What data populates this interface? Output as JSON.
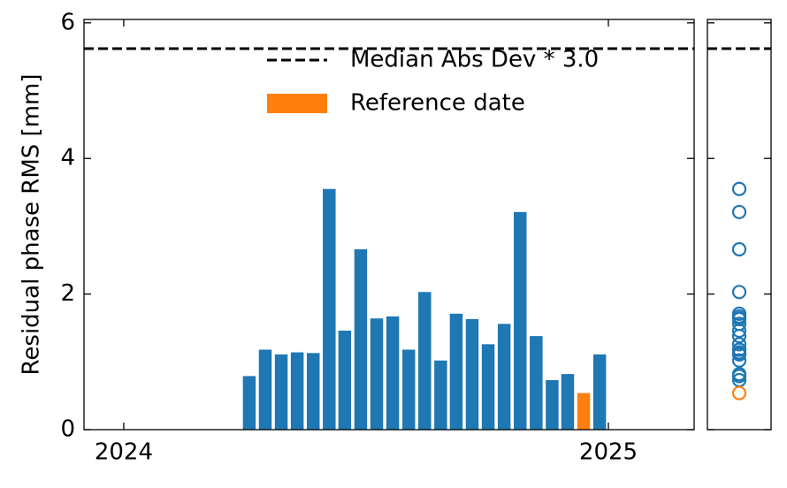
{
  "chart_data": {
    "type": "bar",
    "ylabel": "Residual phase RMS [mm]",
    "x": [
      2024.259,
      2024.292,
      2024.325,
      2024.358,
      2024.391,
      2024.424,
      2024.456,
      2024.489,
      2024.522,
      2024.555,
      2024.588,
      2024.621,
      2024.654,
      2024.686,
      2024.719,
      2024.752,
      2024.785,
      2024.818,
      2024.851,
      2024.884,
      2024.916,
      2024.949,
      2024.982
    ],
    "values": [
      0.79,
      1.18,
      1.11,
      1.14,
      1.13,
      3.55,
      1.46,
      2.66,
      1.64,
      1.67,
      1.18,
      2.03,
      1.02,
      1.71,
      1.63,
      1.26,
      1.56,
      3.21,
      1.38,
      0.73,
      0.82,
      0.54,
      1.11
    ],
    "color": "#1f77b4",
    "reference": {
      "label": "Reference date",
      "index": 21,
      "color": "#ff7f0e"
    },
    "threshold": {
      "label": "Median Abs Dev * 3.0",
      "value": 5.62
    },
    "xlim": [
      2023.918,
      2025.177
    ],
    "xticks": [
      2024,
      2025
    ],
    "ylim": [
      0,
      6.05
    ],
    "yticks": [
      0,
      2,
      4,
      6
    ],
    "side_panel": true
  }
}
